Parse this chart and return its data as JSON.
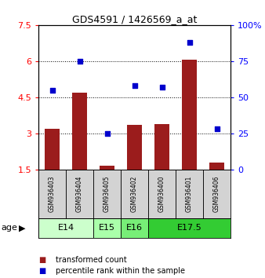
{
  "title": "GDS4591 / 1426569_a_at",
  "samples": [
    "GSM936403",
    "GSM936404",
    "GSM936405",
    "GSM936402",
    "GSM936400",
    "GSM936401",
    "GSM936406"
  ],
  "transformed_count": [
    3.2,
    4.7,
    1.65,
    3.35,
    3.4,
    6.05,
    1.8
  ],
  "percentile_rank": [
    55,
    75,
    25,
    58,
    57,
    88,
    28
  ],
  "left_ylim": [
    1.5,
    7.5
  ],
  "right_ylim": [
    0,
    100
  ],
  "left_yticks": [
    1.5,
    3.0,
    4.5,
    6.0,
    7.5
  ],
  "right_yticks": [
    0,
    25,
    50,
    75,
    100
  ],
  "bar_color": "#9B1C1C",
  "dot_color": "#0000CC",
  "bar_width": 0.55,
  "age_groups": [
    {
      "label": "E14",
      "start": 0,
      "end": 2
    },
    {
      "label": "E15",
      "start": 2,
      "end": 3
    },
    {
      "label": "E16",
      "start": 3,
      "end": 4
    },
    {
      "label": "E17.5",
      "start": 4,
      "end": 7
    }
  ],
  "age_colors": [
    "#CCFFCC",
    "#AAFFAA",
    "#77EE77",
    "#33CC33"
  ],
  "sample_bg_color": "#D3D3D3",
  "legend_red_label": "transformed count",
  "legend_blue_label": "percentile rank within the sample",
  "dotted_lines": [
    3.0,
    4.5,
    6.0
  ]
}
